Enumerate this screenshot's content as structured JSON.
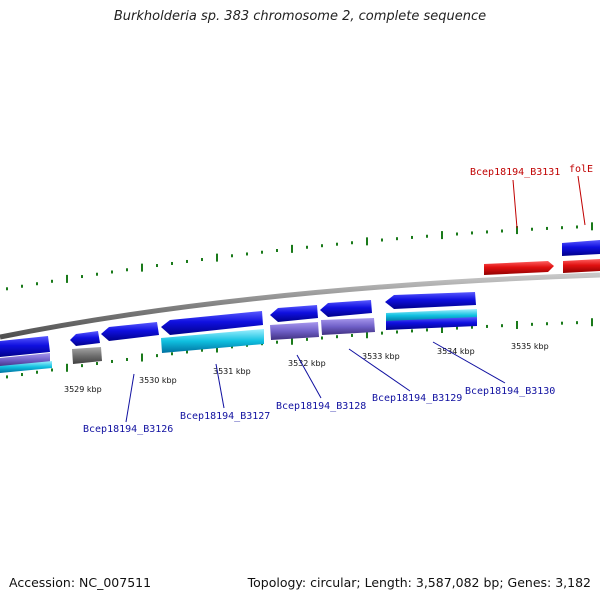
{
  "title": "Burkholderia sp. 383 chromosome 2, complete sequence",
  "footer": {
    "accession": "Accession: NC_007511",
    "summary": "Topology: circular; Length: 3,587,082 bp; Genes: 3,182"
  },
  "colors": {
    "gene_blue": "#1010e0",
    "gene_red": "#e01010",
    "gene_cyan": "#10c0e0",
    "gene_purple": "#7060c8",
    "gene_gray": "#707070",
    "tick_green": "#1a7a1a",
    "label_blue": "#1010a0",
    "label_red": "#c00000"
  },
  "kbp_labels": [
    "3529 kbp",
    "3530 kbp",
    "3531 kbp",
    "3532 kbp",
    "3533 kbp",
    "3534 kbp",
    "3535 kbp"
  ],
  "gene_labels_bottom": [
    "Bcep18194_B3126",
    "Bcep18194_B3127",
    "Bcep18194_B3128",
    "Bcep18194_B3129",
    "Bcep18194_B3130"
  ],
  "gene_labels_top": [
    "Bcep18194_B3131",
    "folE"
  ]
}
